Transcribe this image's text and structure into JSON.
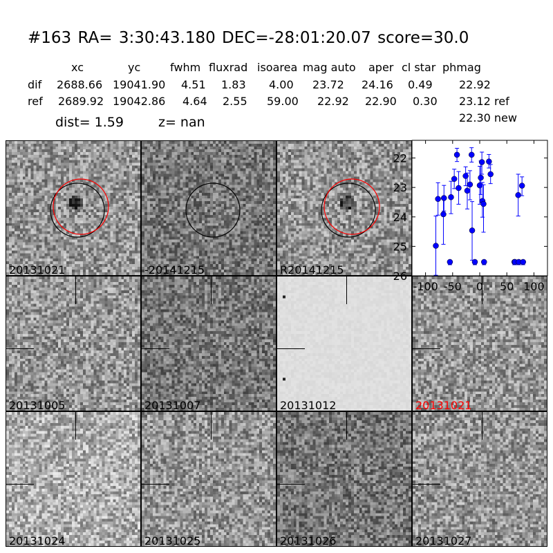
{
  "header": {
    "title": "#163   RA= 3:30:43.180 DEC=-28:01:20.07      score=30.0",
    "columns": [
      "xc",
      "yc",
      "fwhm",
      "fluxrad",
      "isoarea",
      "mag auto",
      "aper",
      "cl star",
      "phmag"
    ],
    "rows": [
      {
        "label": "dif",
        "values": [
          "2688.66",
          "19041.90",
          "4.51",
          "1.83",
          "4.00",
          "23.72",
          "24.16",
          "0.49",
          "22.92"
        ],
        "suffix": ""
      },
      {
        "label": "ref",
        "values": [
          "2689.92",
          "19042.86",
          "4.64",
          "2.55",
          "59.00",
          "22.92",
          "22.90",
          "0.30",
          "23.12"
        ],
        "suffix": "ref"
      }
    ],
    "phmag_new": "22.30 new",
    "dist": "dist=  1.59",
    "z": "z=   nan"
  },
  "stamps": [
    {
      "label": "20131021",
      "label_color": "#000000",
      "circles": true,
      "red_circle": true,
      "tone": "medium"
    },
    {
      "label": "-20141215",
      "label_color": "#000000",
      "circles": true,
      "red_circle": false,
      "tone": "dark"
    },
    {
      "label": "R20141215",
      "label_color": "#000000",
      "circles": true,
      "red_circle": true,
      "tone": "medium"
    },
    {
      "label": "20131005",
      "label_color": "#000000",
      "tone": "medium"
    },
    {
      "label": "20131007",
      "label_color": "#000000",
      "tone": "dark"
    },
    {
      "label": "20131012",
      "label_color": "#000000",
      "tone": "light"
    },
    {
      "label": "20131021",
      "label_color": "#ff0000",
      "tone": "medium"
    },
    {
      "label": "20131024",
      "label_color": "#000000",
      "tone": "bright"
    },
    {
      "label": "20131025",
      "label_color": "#000000",
      "tone": "medium"
    },
    {
      "label": "20131026",
      "label_color": "#000000",
      "tone": "dark"
    },
    {
      "label": "20131027",
      "label_color": "#000000",
      "tone": "medium"
    }
  ],
  "chart_data": {
    "type": "scatter",
    "marker_color": "#0000ff",
    "xlim": [
      -125,
      125
    ],
    "ylim": [
      26,
      21.4
    ],
    "y_inverted": true,
    "xticks": [
      "-100",
      "-50",
      "0",
      "50",
      "100"
    ],
    "xtick_values": [
      -100,
      -50,
      0,
      50,
      100
    ],
    "yticks": [
      "22",
      "23",
      "24",
      "25",
      "26"
    ],
    "ytick_values": [
      22,
      23,
      24,
      25,
      26
    ],
    "points": [
      {
        "x": -81,
        "y": 24.98,
        "ylo": 23.97,
        "yhi": 25.98
      },
      {
        "x": -77,
        "y": 23.39,
        "ylo": 22.84,
        "yhi": 23.94
      },
      {
        "x": -67,
        "y": 23.91,
        "ylo": 23.38,
        "yhi": 24.93
      },
      {
        "x": -66,
        "y": 23.36,
        "ylo": 22.93,
        "yhi": 23.8
      },
      {
        "x": -55,
        "y": 25.53
      },
      {
        "x": -53,
        "y": 23.33,
        "ylo": 22.79,
        "yhi": 23.89
      },
      {
        "x": -47,
        "y": 22.71,
        "ylo": 22.38,
        "yhi": 23.04
      },
      {
        "x": -42,
        "y": 21.89,
        "ylo": 21.67,
        "yhi": 22.12
      },
      {
        "x": -39,
        "y": 23.02,
        "ylo": 22.46,
        "yhi": 23.57
      },
      {
        "x": -26,
        "y": 22.61,
        "ylo": 22.3,
        "yhi": 22.94
      },
      {
        "x": -23,
        "y": 23.11,
        "ylo": 22.51,
        "yhi": 23.73
      },
      {
        "x": -18,
        "y": 22.9,
        "ylo": 22.43,
        "yhi": 23.42
      },
      {
        "x": -15,
        "y": 21.89,
        "ylo": 21.65,
        "yhi": 22.14
      },
      {
        "x": -14,
        "y": 24.46,
        "ylo": 23.48,
        "yhi": 25.47
      },
      {
        "x": -9,
        "y": 25.53
      },
      {
        "x": 0,
        "y": 22.93,
        "ylo": 22.28,
        "yhi": 23.57
      },
      {
        "x": 2,
        "y": 22.67,
        "ylo": 22.1,
        "yhi": 23.24
      },
      {
        "x": 4,
        "y": 22.14,
        "ylo": 21.8,
        "yhi": 22.55
      },
      {
        "x": 5,
        "y": 23.46,
        "ylo": 22.83,
        "yhi": 24.01
      },
      {
        "x": 7,
        "y": 23.56,
        "ylo": 22.91,
        "yhi": 24.52
      },
      {
        "x": 8,
        "y": 25.53
      },
      {
        "x": 17,
        "y": 22.12,
        "ylo": 21.88,
        "yhi": 22.34
      },
      {
        "x": 20,
        "y": 22.55,
        "ylo": 22.22,
        "yhi": 22.87
      },
      {
        "x": 64,
        "y": 25.53
      },
      {
        "x": 65,
        "y": 25.53
      },
      {
        "x": 71,
        "y": 23.26,
        "ylo": 22.55,
        "yhi": 23.97
      },
      {
        "x": 72,
        "y": 25.53
      },
      {
        "x": 78,
        "y": 22.94,
        "ylo": 22.64,
        "yhi": 23.28
      },
      {
        "x": 80,
        "y": 25.53
      }
    ]
  }
}
